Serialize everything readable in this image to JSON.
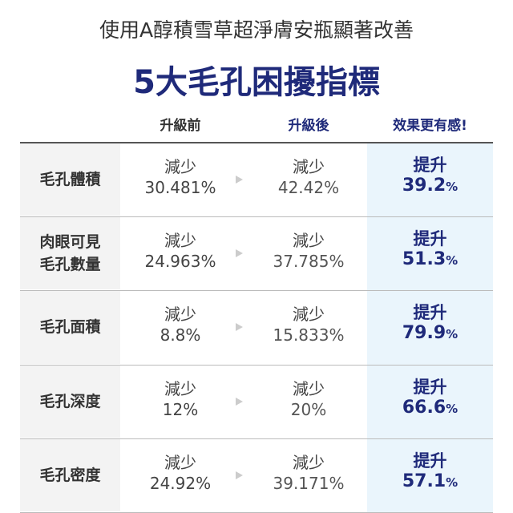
{
  "header": {
    "subtitle": "使用A醇積雪草超淨膚安瓶顯著改善",
    "title": "5大毛孔困擾指標"
  },
  "table": {
    "columns": [
      "升級前",
      "升級後",
      "效果更有感!"
    ],
    "rows": [
      {
        "label": "毛孔體積",
        "before": {
          "word": "減少",
          "value": "30.481%"
        },
        "after": {
          "word": "減少",
          "value": "42.42%"
        },
        "improve": {
          "word": "提升",
          "value": "39.2",
          "unit": "%"
        }
      },
      {
        "label": "肉眼可見\n毛孔數量",
        "before": {
          "word": "減少",
          "value": "24.963%"
        },
        "after": {
          "word": "減少",
          "value": "37.785%"
        },
        "improve": {
          "word": "提升",
          "value": "51.3",
          "unit": "%"
        }
      },
      {
        "label": "毛孔面積",
        "before": {
          "word": "減少",
          "value": "8.8%"
        },
        "after": {
          "word": "減少",
          "value": "15.833%"
        },
        "improve": {
          "word": "提升",
          "value": "79.9",
          "unit": "%"
        }
      },
      {
        "label": "毛孔深度",
        "before": {
          "word": "減少",
          "value": "12%"
        },
        "after": {
          "word": "減少",
          "value": "20%"
        },
        "improve": {
          "word": "提升",
          "value": "66.6",
          "unit": "%"
        }
      },
      {
        "label": "毛孔密度",
        "before": {
          "word": "減少",
          "value": "24.92%"
        },
        "after": {
          "word": "減少",
          "value": "39.171%"
        },
        "improve": {
          "word": "提升",
          "value": "57.1",
          "unit": "%"
        }
      }
    ]
  }
}
